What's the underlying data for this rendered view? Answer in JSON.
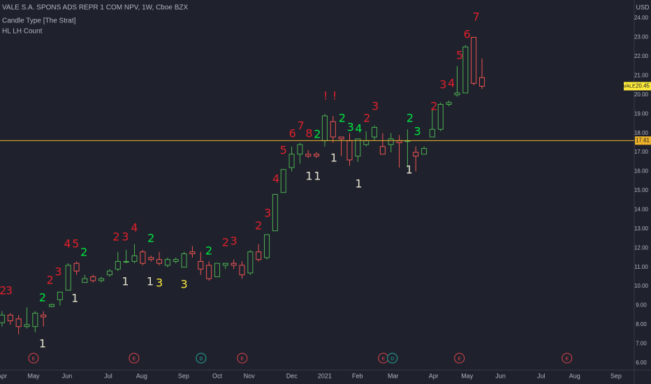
{
  "chart_data": {
    "type": "candlestick",
    "title": "VALE S.A. SPONS ADS REPR 1 COM NPV, 1W, Cboe BZX",
    "indicators": [
      "Candle Type [The Strat]",
      "HL LH Count"
    ],
    "ylabel": "USD",
    "up_color": "#4caf50",
    "down_color": "#ef5350",
    "x": [
      0,
      1,
      2,
      3,
      4,
      5,
      6,
      7,
      8,
      9,
      10,
      11,
      12,
      13,
      14,
      15,
      16,
      17,
      18,
      19,
      20,
      21,
      22,
      23,
      24,
      25,
      26,
      27,
      28,
      29,
      30,
      31,
      32,
      33,
      34,
      35,
      36,
      37,
      38,
      39,
      40,
      41,
      42,
      43,
      44,
      45,
      46,
      47,
      48,
      49,
      50,
      51,
      52,
      53,
      54,
      55,
      56,
      57,
      58
    ],
    "open": [
      8.1,
      8.5,
      8.3,
      7.9,
      7.9,
      8.5,
      8.95,
      9.3,
      9.8,
      11.2,
      10.2,
      10.5,
      10.3,
      10.6,
      10.9,
      11.3,
      11.3,
      11.8,
      11.5,
      11.4,
      11.1,
      11.3,
      11.0,
      11.8,
      11.3,
      11.1,
      10.5,
      11.1,
      11.2,
      11.1,
      10.7,
      11.8,
      11.5,
      12.9,
      14.9,
      16.2,
      16.9,
      16.9,
      16.9,
      17.6,
      18.6,
      17.8,
      17.6,
      16.8,
      17.4,
      17.8,
      17.3,
      17.4,
      17.6,
      17.6,
      17.0,
      16.9,
      17.8,
      18.2,
      19.5,
      20.0,
      20.1,
      23.0,
      20.9
    ],
    "high": [
      8.7,
      8.6,
      8.5,
      8.9,
      8.7,
      8.7,
      9.1,
      9.7,
      11.2,
      11.3,
      10.6,
      10.6,
      10.5,
      10.9,
      11.8,
      11.9,
      12.2,
      11.9,
      11.6,
      11.8,
      11.5,
      11.5,
      11.8,
      12.1,
      11.8,
      11.3,
      11.2,
      11.2,
      11.4,
      11.3,
      11.9,
      12.2,
      12.7,
      14.8,
      16.1,
      17.3,
      17.5,
      17.1,
      17.0,
      19.0,
      18.9,
      17.8,
      18.0,
      17.7,
      18.1,
      18.4,
      18.0,
      18.0,
      17.9,
      18.2,
      17.3,
      17.3,
      19.3,
      19.6,
      19.7,
      21.5,
      22.6,
      23.0,
      21.9
    ],
    "low": [
      7.9,
      8.0,
      7.5,
      7.8,
      7.6,
      7.9,
      8.9,
      9.0,
      9.8,
      10.6,
      10.2,
      10.2,
      10.2,
      10.5,
      10.8,
      11.2,
      11.2,
      11.1,
      11.3,
      11.1,
      11.0,
      11.2,
      11.0,
      11.5,
      10.6,
      10.3,
      10.5,
      10.9,
      10.9,
      10.4,
      10.6,
      11.3,
      11.4,
      12.9,
      14.9,
      16.0,
      16.4,
      16.7,
      16.7,
      17.3,
      17.5,
      16.8,
      16.3,
      16.5,
      17.3,
      17.6,
      16.9,
      17.0,
      16.2,
      16.2,
      16.0,
      16.9,
      17.8,
      18.1,
      19.4,
      19.9,
      20.1,
      20.5,
      20.3
    ],
    "close": [
      8.5,
      8.2,
      7.9,
      8.0,
      8.6,
      8.4,
      9.05,
      9.7,
      11.1,
      10.8,
      10.4,
      10.3,
      10.4,
      10.8,
      11.3,
      11.3,
      11.6,
      11.2,
      11.4,
      11.2,
      11.4,
      11.4,
      11.7,
      11.7,
      10.9,
      10.4,
      11.2,
      11.2,
      11.1,
      10.6,
      11.8,
      11.4,
      12.7,
      14.8,
      16.1,
      16.9,
      17.4,
      16.8,
      16.8,
      18.9,
      17.8,
      17.7,
      16.6,
      17.7,
      17.6,
      18.3,
      16.9,
      17.7,
      17.5,
      17.6,
      16.8,
      17.2,
      18.2,
      19.5,
      19.6,
      20.1,
      22.5,
      20.6,
      20.45
    ],
    "xlim": [
      -0.25,
      76.4
    ],
    "xticks": [
      {
        "value": 0,
        "label": "Apr"
      },
      {
        "value": 3.8,
        "label": "May"
      },
      {
        "value": 7.85,
        "label": "Jun"
      },
      {
        "value": 12.83,
        "label": "Jul"
      },
      {
        "value": 16.88,
        "label": "Aug"
      },
      {
        "value": 21.94,
        "label": "Sep"
      },
      {
        "value": 26.0,
        "label": "Oct"
      },
      {
        "value": 29.87,
        "label": "Nov"
      },
      {
        "value": 35.02,
        "label": "Dec"
      },
      {
        "value": 38.99,
        "label": "2021"
      },
      {
        "value": 42.95,
        "label": "Feb"
      },
      {
        "value": 47.26,
        "label": "Mar"
      },
      {
        "value": 52.15,
        "label": "Apr"
      },
      {
        "value": 56.2,
        "label": "May"
      },
      {
        "value": 60.25,
        "label": "Jun"
      },
      {
        "value": 65.15,
        "label": "Jul"
      },
      {
        "value": 69.2,
        "label": "Aug"
      },
      {
        "value": 74.2,
        "label": "Sep"
      }
    ],
    "ylim": [
      5.63,
      24.95
    ],
    "yticks": [
      {
        "value": 6,
        "label": "6.00"
      },
      {
        "value": 7,
        "label": "7.00"
      },
      {
        "value": 8,
        "label": "8.00"
      },
      {
        "value": 9,
        "label": "9.00"
      },
      {
        "value": 10,
        "label": "10.00"
      },
      {
        "value": 11,
        "label": "11.00"
      },
      {
        "value": 12,
        "label": "12.00"
      },
      {
        "value": 13,
        "label": "13.00"
      },
      {
        "value": 14,
        "label": "14.00"
      },
      {
        "value": 15,
        "label": "15.00"
      },
      {
        "value": 16,
        "label": "16.00"
      },
      {
        "value": 17,
        "label": "17.00"
      },
      {
        "value": 18,
        "label": "18.00"
      },
      {
        "value": 19,
        "label": "19.00"
      },
      {
        "value": 20,
        "label": "20.00"
      },
      {
        "value": 21,
        "label": "21.00"
      },
      {
        "value": 22,
        "label": "22.00"
      },
      {
        "value": 23,
        "label": "23.00"
      },
      {
        "value": 24,
        "label": "24.00"
      }
    ],
    "grid": false,
    "hline": {
      "value": 17.61,
      "color": "#f0b429"
    },
    "last_price": {
      "symbol": "VALE",
      "value": 20.45,
      "color": "#ffeb3b"
    },
    "annotations": [
      {
        "text": "2",
        "x": 0.1,
        "y": 9.75,
        "color": "#e0202a"
      },
      {
        "text": "3",
        "x": 0.85,
        "y": 9.75,
        "color": "#e0202a"
      },
      {
        "text": "2",
        "x": 4.9,
        "y": 9.39,
        "color": "#00e640"
      },
      {
        "text": "1",
        "x": 4.9,
        "y": 6.98,
        "color": "#e8e4d0"
      },
      {
        "text": "2",
        "x": 5.8,
        "y": 10.3,
        "color": "#e0202a"
      },
      {
        "text": "3",
        "x": 6.8,
        "y": 10.73,
        "color": "#e0202a"
      },
      {
        "text": "1",
        "x": 8.8,
        "y": 9.35,
        "color": "#e8e4d0"
      },
      {
        "text": "4",
        "x": 7.9,
        "y": 12.19,
        "color": "#e0202a"
      },
      {
        "text": "5",
        "x": 8.9,
        "y": 12.19,
        "color": "#e0202a"
      },
      {
        "text": "2",
        "x": 9.9,
        "y": 11.75,
        "color": "#00e640"
      },
      {
        "text": "2",
        "x": 13.8,
        "y": 12.56,
        "color": "#e0202a"
      },
      {
        "text": "3",
        "x": 14.9,
        "y": 12.56,
        "color": "#e0202a"
      },
      {
        "text": "4",
        "x": 16.0,
        "y": 13.03,
        "color": "#e0202a"
      },
      {
        "text": "1",
        "x": 14.9,
        "y": 10.22,
        "color": "#e8e4d0"
      },
      {
        "text": "2",
        "x": 18.0,
        "y": 12.48,
        "color": "#00e640"
      },
      {
        "text": "1",
        "x": 17.9,
        "y": 10.22,
        "color": "#e8e4d0"
      },
      {
        "text": "3",
        "x": 19.0,
        "y": 10.15,
        "color": "#ffeb3b"
      },
      {
        "text": "3",
        "x": 22.0,
        "y": 10.08,
        "color": "#ffeb3b"
      },
      {
        "text": "2",
        "x": 25.0,
        "y": 11.83,
        "color": "#00e640"
      },
      {
        "text": "2",
        "x": 27.0,
        "y": 12.27,
        "color": "#e0202a"
      },
      {
        "text": "3",
        "x": 28.0,
        "y": 12.34,
        "color": "#e0202a"
      },
      {
        "text": "2",
        "x": 31.0,
        "y": 13.14,
        "color": "#e0202a"
      },
      {
        "text": "3",
        "x": 32.1,
        "y": 13.8,
        "color": "#e0202a"
      },
      {
        "text": "4",
        "x": 33.1,
        "y": 15.58,
        "color": "#e0202a"
      },
      {
        "text": "5",
        "x": 34.0,
        "y": 17.08,
        "color": "#e0202a"
      },
      {
        "text": "6",
        "x": 35.1,
        "y": 17.95,
        "color": "#e0202a"
      },
      {
        "text": "7",
        "x": 36.1,
        "y": 18.35,
        "color": "#e0202a"
      },
      {
        "text": "8",
        "x": 37.1,
        "y": 17.95,
        "color": "#e0202a"
      },
      {
        "text": "2",
        "x": 38.1,
        "y": 17.91,
        "color": "#00e640"
      },
      {
        "text": "1",
        "x": 37.1,
        "y": 15.73,
        "color": "#e8e4d0"
      },
      {
        "text": "1",
        "x": 38.1,
        "y": 15.73,
        "color": "#e8e4d0"
      },
      {
        "text": "!",
        "x": 39.1,
        "y": 19.92,
        "color": "#e0202a"
      },
      {
        "text": "!",
        "x": 40.2,
        "y": 19.92,
        "color": "#e0202a"
      },
      {
        "text": "2",
        "x": 41.1,
        "y": 18.75,
        "color": "#00e640"
      },
      {
        "text": "3",
        "x": 42.1,
        "y": 18.28,
        "color": "#00e640"
      },
      {
        "text": "4",
        "x": 43.1,
        "y": 18.21,
        "color": "#00e640"
      },
      {
        "text": "1",
        "x": 40.1,
        "y": 16.67,
        "color": "#e8e4d0"
      },
      {
        "text": "2",
        "x": 44.1,
        "y": 18.75,
        "color": "#e0202a"
      },
      {
        "text": "3",
        "x": 45.1,
        "y": 19.37,
        "color": "#e0202a"
      },
      {
        "text": "1",
        "x": 43.1,
        "y": 15.33,
        "color": "#e8e4d0"
      },
      {
        "text": "2",
        "x": 49.3,
        "y": 18.75,
        "color": "#00e640"
      },
      {
        "text": "3",
        "x": 50.2,
        "y": 18.06,
        "color": "#00e640"
      },
      {
        "text": "1",
        "x": 49.2,
        "y": 16.06,
        "color": "#e8e4d0"
      },
      {
        "text": "2",
        "x": 52.2,
        "y": 19.37,
        "color": "#e0202a"
      },
      {
        "text": "3",
        "x": 53.3,
        "y": 20.5,
        "color": "#e0202a"
      },
      {
        "text": "4",
        "x": 54.3,
        "y": 20.57,
        "color": "#e0202a"
      },
      {
        "text": "5",
        "x": 55.3,
        "y": 22.03,
        "color": "#e0202a"
      },
      {
        "text": "6",
        "x": 56.2,
        "y": 23.13,
        "color": "#e0202a"
      },
      {
        "text": "7",
        "x": 57.3,
        "y": 24.04,
        "color": "#e0202a"
      }
    ],
    "events": [
      {
        "label": "E",
        "x": 3.8,
        "color": "#e0434a"
      },
      {
        "label": "E",
        "x": 15.95,
        "color": "#e0434a"
      },
      {
        "label": "D",
        "x": 24.05,
        "color": "#26a69a"
      },
      {
        "label": "E",
        "x": 29.03,
        "color": "#e0434a"
      },
      {
        "label": "E",
        "x": 46.08,
        "color": "#e0434a"
      },
      {
        "label": "D",
        "x": 47.17,
        "color": "#26a69a"
      },
      {
        "label": "E",
        "x": 55.27,
        "color": "#e0434a"
      },
      {
        "label": "E",
        "x": 68.27,
        "color": "#e0434a"
      }
    ]
  }
}
